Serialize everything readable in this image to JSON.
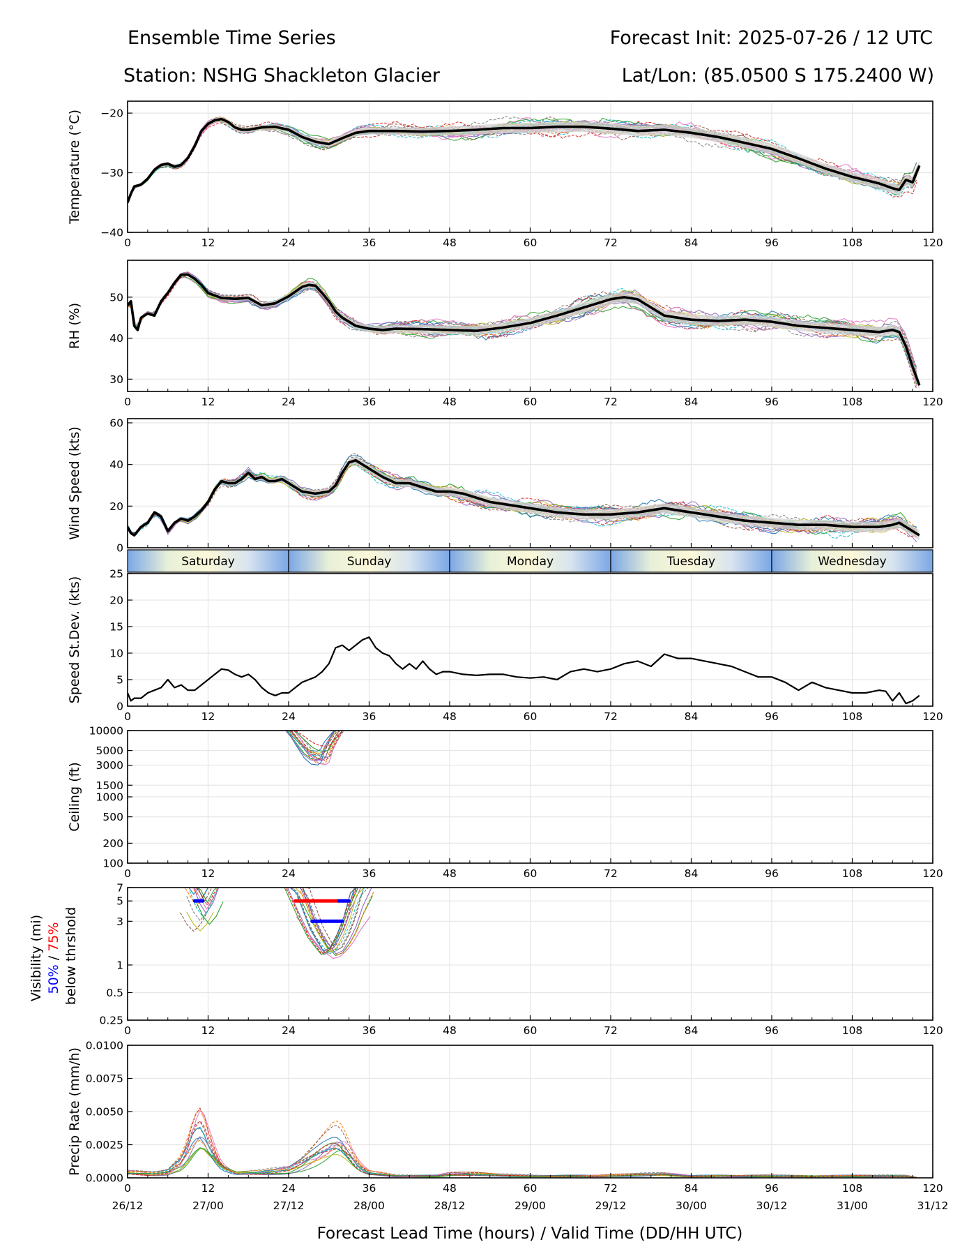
{
  "header": {
    "title": "Ensemble Time Series",
    "init": "Forecast Init: 2025-07-26 / 12 UTC",
    "station": "Station: NSHG Shackleton Glacier",
    "latlon": "Lat/Lon: (85.0500 S 175.2400 W)"
  },
  "xaxis": {
    "ticks": [
      0,
      12,
      24,
      36,
      48,
      60,
      72,
      84,
      96,
      108,
      120
    ],
    "valid_labels": [
      "26/12",
      "27/00",
      "27/12",
      "28/00",
      "28/12",
      "29/00",
      "29/12",
      "30/00",
      "30/12",
      "31/00",
      "31/12"
    ],
    "label": "Forecast Lead Time (hours) / Valid Time (DD/HH UTC)",
    "range": [
      0,
      120
    ]
  },
  "day_strip": [
    "Saturday",
    "Sunday",
    "Monday",
    "Tuesday",
    "Wednesday"
  ],
  "visibility_label": {
    "line1": "Visibility (mi)",
    "pct50": "50%",
    "sep": " / ",
    "pct75": "75%",
    "line3": "below thrshold"
  },
  "colors": {
    "mean": "#000000",
    "spread": "#d3d3d3",
    "pct50": "#0000ff",
    "pct75": "#ff0000",
    "members": [
      "#1f77b4",
      "#ff7f0e",
      "#2ca02c",
      "#d62728",
      "#9467bd",
      "#8c564b",
      "#e377c2",
      "#7f7f7f",
      "#bcbd22",
      "#17becf"
    ]
  },
  "chart_data": [
    {
      "id": "temp",
      "type": "line",
      "ylabel": "Temperature (°C)",
      "ylim": [
        -40,
        -18
      ],
      "yticks": [
        -40,
        -30,
        -20
      ],
      "yticklabels": [
        "−40",
        "−30",
        "−20"
      ],
      "series": [
        {
          "x": [
            0,
            0.5,
            1,
            2,
            3,
            4,
            5,
            6,
            7,
            8,
            9,
            10,
            11,
            12,
            13,
            14,
            15,
            16,
            17,
            18,
            20,
            22,
            24,
            26,
            28,
            30,
            32,
            34,
            36,
            40,
            44,
            48,
            52,
            56,
            60,
            64,
            68,
            72,
            76,
            80,
            84,
            88,
            92,
            96,
            100,
            104,
            108,
            112,
            113,
            114,
            115,
            116,
            117,
            118
          ],
          "y": [
            -35.0,
            -33.5,
            -32.3,
            -32.0,
            -31.0,
            -29.5,
            -28.7,
            -28.5,
            -29.0,
            -28.7,
            -27.5,
            -25.5,
            -23.0,
            -21.8,
            -21.2,
            -21.0,
            -21.5,
            -22.4,
            -22.8,
            -22.8,
            -22.4,
            -22.3,
            -22.8,
            -24.0,
            -24.8,
            -25.2,
            -24.2,
            -23.3,
            -23.0,
            -23.0,
            -23.1,
            -23.0,
            -22.8,
            -22.5,
            -22.5,
            -22.3,
            -22.3,
            -22.6,
            -23.0,
            -22.8,
            -23.3,
            -24.0,
            -25.0,
            -26.0,
            -27.6,
            -29.3,
            -30.7,
            -31.8,
            -32.2,
            -32.6,
            -32.9,
            -31.2,
            -31.6,
            -28.8
          ]
        }
      ]
    },
    {
      "id": "rh",
      "type": "line",
      "ylabel": "RH (%)",
      "ylim": [
        27,
        59
      ],
      "yticks": [
        30,
        40,
        50
      ],
      "yticklabels": [
        "30",
        "40",
        "50"
      ],
      "series": [
        {
          "x": [
            0,
            0.5,
            1,
            1.5,
            2,
            3,
            4,
            5,
            6,
            7,
            8,
            9,
            10,
            11,
            12,
            14,
            16,
            18,
            20,
            22,
            24,
            26,
            27,
            28,
            29,
            30,
            31,
            32,
            33,
            34,
            36,
            38,
            40,
            44,
            48,
            52,
            56,
            60,
            64,
            68,
            72,
            74,
            76,
            78,
            80,
            84,
            88,
            92,
            96,
            100,
            104,
            108,
            112,
            114,
            115,
            116,
            117,
            118
          ],
          "y": [
            48.0,
            49.0,
            43.0,
            42.0,
            45.0,
            46.0,
            45.5,
            49.0,
            51.0,
            53.5,
            55.5,
            55.5,
            54.5,
            53.0,
            51.0,
            49.8,
            49.6,
            49.8,
            48.0,
            48.5,
            50.2,
            52.5,
            53.0,
            52.8,
            51.0,
            49.0,
            46.5,
            45.0,
            44.0,
            43.0,
            42.3,
            42.0,
            42.3,
            42.2,
            42.0,
            41.8,
            42.6,
            43.7,
            45.5,
            47.5,
            49.5,
            50.0,
            49.5,
            47.5,
            45.5,
            44.5,
            44.2,
            44.5,
            44.0,
            43.0,
            42.5,
            42.0,
            41.5,
            42.0,
            41.5,
            38.0,
            33.0,
            28.5
          ]
        }
      ]
    },
    {
      "id": "wind",
      "type": "line",
      "ylabel": "Wind Speed (kts)",
      "ylim": [
        0,
        62
      ],
      "yticks": [
        0,
        20,
        40,
        60
      ],
      "yticklabels": [
        "0",
        "20",
        "40",
        "60"
      ],
      "series": [
        {
          "x": [
            0,
            0.5,
            1,
            2,
            3,
            4,
            5,
            6,
            7,
            8,
            9,
            10,
            11,
            12,
            13,
            14,
            15,
            16,
            17,
            18,
            19,
            20,
            21,
            22,
            23,
            24,
            26,
            28,
            30,
            31,
            32,
            33,
            34,
            35,
            36,
            38,
            40,
            42,
            44,
            46,
            48,
            50,
            52,
            54,
            56,
            60,
            64,
            68,
            72,
            76,
            80,
            84,
            88,
            92,
            96,
            100,
            104,
            108,
            112,
            114,
            115,
            116,
            117,
            118
          ],
          "y": [
            10.0,
            7.0,
            6.0,
            10.0,
            12.0,
            17.0,
            15.0,
            8.0,
            12.0,
            14.0,
            13.0,
            15.0,
            18.0,
            22.0,
            28.0,
            32.0,
            31.0,
            31.0,
            33.0,
            36.0,
            33.0,
            34.0,
            32.0,
            32.0,
            33.0,
            31.0,
            27.0,
            26.0,
            27.0,
            30.0,
            36.0,
            41.0,
            42.0,
            40.0,
            38.0,
            34.0,
            31.0,
            31.0,
            29.0,
            27.0,
            27.0,
            26.0,
            24.0,
            22.0,
            21.0,
            19.0,
            17.0,
            16.0,
            16.0,
            17.0,
            19.0,
            17.0,
            15.0,
            13.0,
            12.0,
            11.0,
            11.0,
            10.0,
            10.0,
            11.0,
            12.0,
            10.0,
            8.0,
            6.0
          ]
        }
      ]
    },
    {
      "id": "sd",
      "type": "line",
      "ylabel": "Speed St.Dev. (kts)",
      "ylim": [
        0,
        25
      ],
      "yticks": [
        0,
        5,
        10,
        15,
        20,
        25
      ],
      "yticklabels": [
        "0",
        "5",
        "10",
        "15",
        "20",
        "25"
      ],
      "series": [
        {
          "x": [
            0,
            0.5,
            1,
            2,
            3,
            4,
            5,
            6,
            7,
            8,
            9,
            10,
            11,
            12,
            13,
            14,
            15,
            16,
            17,
            18,
            19,
            20,
            21,
            22,
            23,
            24,
            25,
            26,
            27,
            28,
            29,
            30,
            31,
            32,
            33,
            34,
            35,
            36,
            37,
            38,
            39,
            40,
            41,
            42,
            43,
            44,
            45,
            46,
            47,
            48,
            50,
            52,
            54,
            56,
            58,
            60,
            62,
            64,
            66,
            68,
            70,
            72,
            74,
            76,
            78,
            80,
            82,
            84,
            86,
            88,
            90,
            92,
            94,
            96,
            98,
            100,
            102,
            104,
            106,
            108,
            110,
            112,
            113,
            114,
            115,
            116,
            117,
            118
          ],
          "y": [
            2.5,
            1.0,
            1.5,
            1.5,
            2.5,
            3.0,
            3.5,
            5.0,
            3.5,
            4.0,
            3.0,
            3.0,
            4.0,
            5.0,
            6.0,
            7.0,
            6.8,
            6.0,
            5.5,
            6.0,
            5.0,
            3.5,
            2.5,
            2.0,
            2.5,
            2.5,
            3.5,
            4.5,
            5.0,
            5.5,
            6.5,
            8.0,
            11.0,
            11.5,
            10.5,
            11.5,
            12.5,
            13.0,
            11.0,
            10.0,
            9.5,
            8.0,
            7.0,
            8.0,
            7.0,
            8.5,
            7.0,
            6.0,
            6.5,
            6.5,
            6.0,
            5.8,
            6.0,
            6.0,
            5.5,
            5.3,
            5.5,
            5.0,
            6.5,
            7.0,
            6.5,
            7.0,
            8.0,
            8.5,
            7.5,
            9.8,
            9.0,
            9.0,
            8.5,
            8.0,
            7.5,
            6.5,
            5.5,
            5.5,
            4.5,
            3.0,
            4.5,
            3.5,
            3.0,
            2.5,
            2.5,
            3.0,
            2.8,
            1.0,
            2.5,
            0.5,
            1.0,
            2.0
          ]
        }
      ]
    },
    {
      "id": "ceiling",
      "type": "line",
      "ylabel": "Ceiling (ft)",
      "yscale": "log",
      "ylim": [
        100,
        10000
      ],
      "yticks": [
        100,
        200,
        500,
        1000,
        1500,
        3000,
        5000,
        10000
      ],
      "yticklabels": [
        "100",
        "200",
        "500",
        "1000",
        "1500",
        "3000",
        "5000",
        "10000"
      ],
      "series": [
        {
          "x": [
            24.3,
            25,
            26,
            27,
            28,
            29,
            29.5,
            30,
            31,
            31.5
          ],
          "y": [
            10000,
            8500,
            6500,
            5000,
            4300,
            4200,
            4500,
            6000,
            8500,
            10000
          ]
        }
      ]
    },
    {
      "id": "vis",
      "type": "line",
      "yscale": "log",
      "ylim": [
        0.25,
        7
      ],
      "yticks": [
        0.25,
        0.5,
        1,
        3,
        5,
        7
      ],
      "yticklabels": [
        "0.25",
        "0.5",
        "1",
        "3",
        "5",
        "7"
      ],
      "series": [
        {
          "x": [
            9,
            10,
            11,
            12,
            13
          ],
          "y": [
            7,
            4.5,
            3.5,
            4.5,
            7
          ]
        },
        {
          "x": [
            24.5,
            26,
            27,
            28,
            29,
            30,
            31,
            32,
            33,
            34,
            35.5
          ],
          "y": [
            7,
            4,
            2.8,
            2,
            1.6,
            1.3,
            1.4,
            1.8,
            2.5,
            4,
            7
          ]
        }
      ],
      "threshold_bars": [
        {
          "pct": "50%",
          "y": 5,
          "x": [
            10.0,
            11.2
          ]
        },
        {
          "pct": "75%",
          "y": 5,
          "x": [
            25.0,
            33.0
          ]
        },
        {
          "pct": "50%",
          "y": 5,
          "x": [
            31.5,
            33.0
          ]
        },
        {
          "pct": "50%",
          "y": 3,
          "x": [
            27.5,
            32.0
          ]
        }
      ]
    },
    {
      "id": "precip",
      "type": "line",
      "ylabel": "Precip Rate (mm/h)",
      "ylim": [
        0,
        0.01
      ],
      "yticks": [
        0,
        0.0025,
        0.005,
        0.0075,
        0.01
      ],
      "yticklabels": [
        "0.0000",
        "0.0025",
        "0.0050",
        "0.0075",
        "0.0100"
      ],
      "series": [
        {
          "x": [
            0,
            4,
            6,
            8,
            9,
            10,
            11,
            12,
            13,
            14,
            16,
            20,
            24,
            26,
            28,
            30,
            31,
            32,
            33,
            34,
            35,
            36,
            40,
            46,
            48,
            52,
            60,
            70,
            80,
            84,
            90,
            96,
            104,
            112,
            116,
            118
          ],
          "y": [
            0.0003,
            0.0002,
            0.0003,
            0.0008,
            0.0015,
            0.0024,
            0.0028,
            0.002,
            0.0013,
            0.0007,
            0.0003,
            0.0003,
            0.0004,
            0.0007,
            0.0012,
            0.0018,
            0.0021,
            0.002,
            0.0015,
            0.0009,
            0.0005,
            0.0003,
            0.0001,
            0.0001,
            0.0002,
            0.0002,
            0.0001,
            0.0001,
            0.0002,
            0.0001,
            0.0001,
            0.0001,
            0.0001,
            0.0001,
            0.0001,
            0.0
          ]
        }
      ]
    }
  ]
}
